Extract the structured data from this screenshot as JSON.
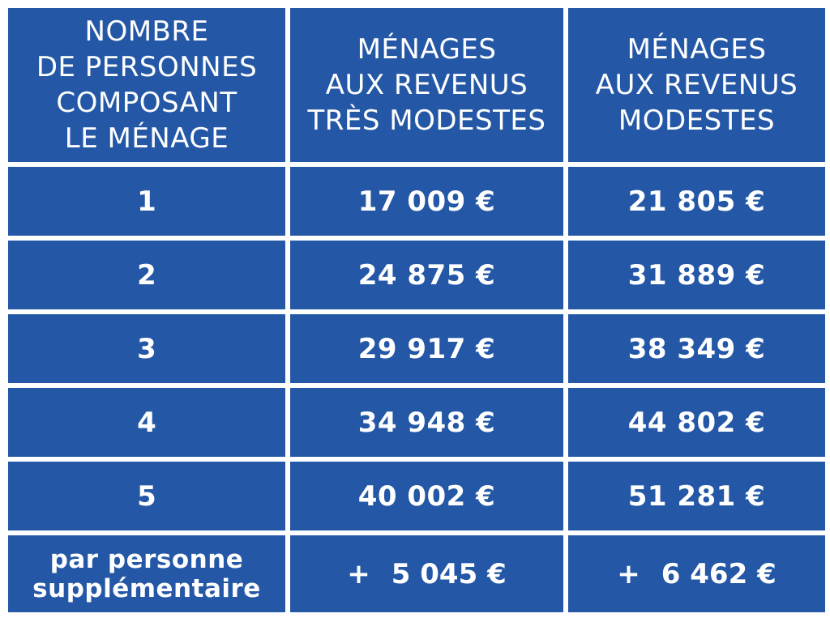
{
  "header": {
    "col1": [
      "NOMBRE",
      "DE PERSONNES",
      "COMPOSANT",
      "LE MÉNAGE"
    ],
    "col2": [
      "MÉNAGES",
      "AUX REVENUS",
      "TRÈS MODESTES"
    ],
    "col3": [
      "MÉNAGES",
      "AUX REVENUS",
      "MODESTES"
    ]
  },
  "rows": [
    {
      "persons": "1",
      "tres_modestes": "17 009 €",
      "modestes": "21 805 €"
    },
    {
      "persons": "2",
      "tres_modestes": "24 875 €",
      "modestes": "31 889 €"
    },
    {
      "persons": "3",
      "tres_modestes": "29 917 €",
      "modestes": "38 349 €"
    },
    {
      "persons": "4",
      "tres_modestes": "34 948 €",
      "modestes": "44 802 €"
    },
    {
      "persons": "5",
      "tres_modestes": "40 002 €",
      "modestes": "51 281 €"
    }
  ],
  "extra": {
    "label": [
      "par personne",
      "supplémentaire"
    ],
    "plus": "+",
    "tres_modestes": "5 045 €",
    "modestes": "6 462 €"
  },
  "colors": {
    "cell_background": "#2458a6",
    "text": "#ffffff",
    "page_background": "#ffffff"
  }
}
